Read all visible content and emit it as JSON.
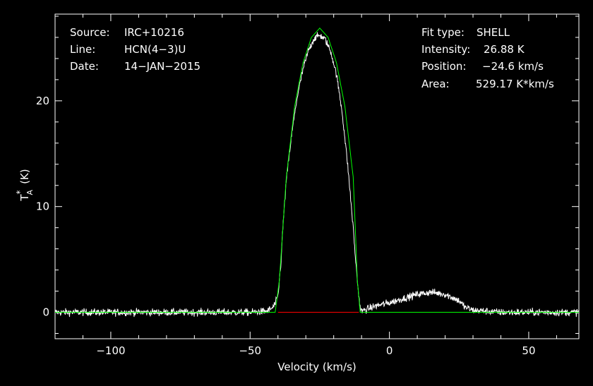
{
  "chart_data": {
    "type": "line",
    "xlabel": "Velocity (km/s)",
    "ylabel_main": "T",
    "ylabel_sup": "*",
    "ylabel_sub": "A",
    "ylabel_unit": "(K)",
    "xlim": [
      -120,
      68
    ],
    "ylim": [
      -2.5,
      28.2
    ],
    "xticks": [
      -100,
      -50,
      0,
      50
    ],
    "xtick_labels": [
      "−100",
      "−50",
      "0",
      "50"
    ],
    "yticks": [
      0,
      10,
      20
    ],
    "ytick_labels": [
      "0",
      "10",
      "20"
    ],
    "grid": false,
    "colors": {
      "background": "#000000",
      "axes": "#ffffff",
      "spectrum": "#ffffff",
      "fit": "#00ff00",
      "baseline": "#ff0000"
    },
    "info_left": [
      {
        "label": "Source:",
        "value": "IRC+10216"
      },
      {
        "label": "Line:",
        "value": "HCN(4−3)U"
      },
      {
        "label": "Date:",
        "value": "14−JAN−2015"
      }
    ],
    "info_right": [
      {
        "label": "Fit type:",
        "value": "SHELL"
      },
      {
        "label": "Intensity:",
        "value": "26.88 K"
      },
      {
        "label": "Position:",
        "value": "−24.6 km/s"
      },
      {
        "label": "Area:",
        "value": "529.17 K*km/s"
      }
    ],
    "series": [
      {
        "role": "spectrum",
        "x": [
          -120,
          -110,
          -100,
          -90,
          -80,
          -70,
          -60,
          -50,
          -44,
          -42,
          -41,
          -40,
          -39,
          -38,
          -37,
          -35,
          -33,
          -31,
          -29,
          -27,
          -25,
          -23,
          -21,
          -19,
          -17,
          -15,
          -13,
          -12,
          -11,
          -10.5,
          -10,
          -8,
          -5,
          0,
          5,
          10,
          15,
          20,
          25,
          27,
          30,
          40,
          50,
          60,
          68
        ],
        "y": [
          0,
          0,
          0,
          0,
          0,
          0,
          0,
          0,
          0.1,
          0.4,
          0.8,
          1.5,
          4.5,
          9,
          12.5,
          17,
          20.5,
          23,
          24.8,
          25.9,
          26.2,
          25.8,
          24.6,
          22.5,
          19,
          14,
          8,
          4.5,
          1.5,
          0.5,
          0.1,
          0.3,
          0.6,
          0.9,
          1.3,
          1.7,
          1.9,
          1.7,
          1.1,
          0.5,
          0.2,
          0,
          0,
          0,
          0
        ]
      },
      {
        "role": "fit",
        "x": [
          -120,
          -41,
          -39.5,
          -37,
          -34,
          -31,
          -28,
          -25,
          -22,
          -19,
          -16,
          -13,
          -11.5,
          -10.5,
          68
        ],
        "y": [
          0,
          0,
          3,
          12.8,
          19.5,
          23.6,
          26.0,
          26.88,
          26.0,
          23.6,
          19.5,
          12.8,
          3,
          0,
          0
        ]
      },
      {
        "role": "baseline",
        "x": [
          -40,
          -11
        ],
        "y": [
          0,
          0
        ]
      }
    ]
  }
}
